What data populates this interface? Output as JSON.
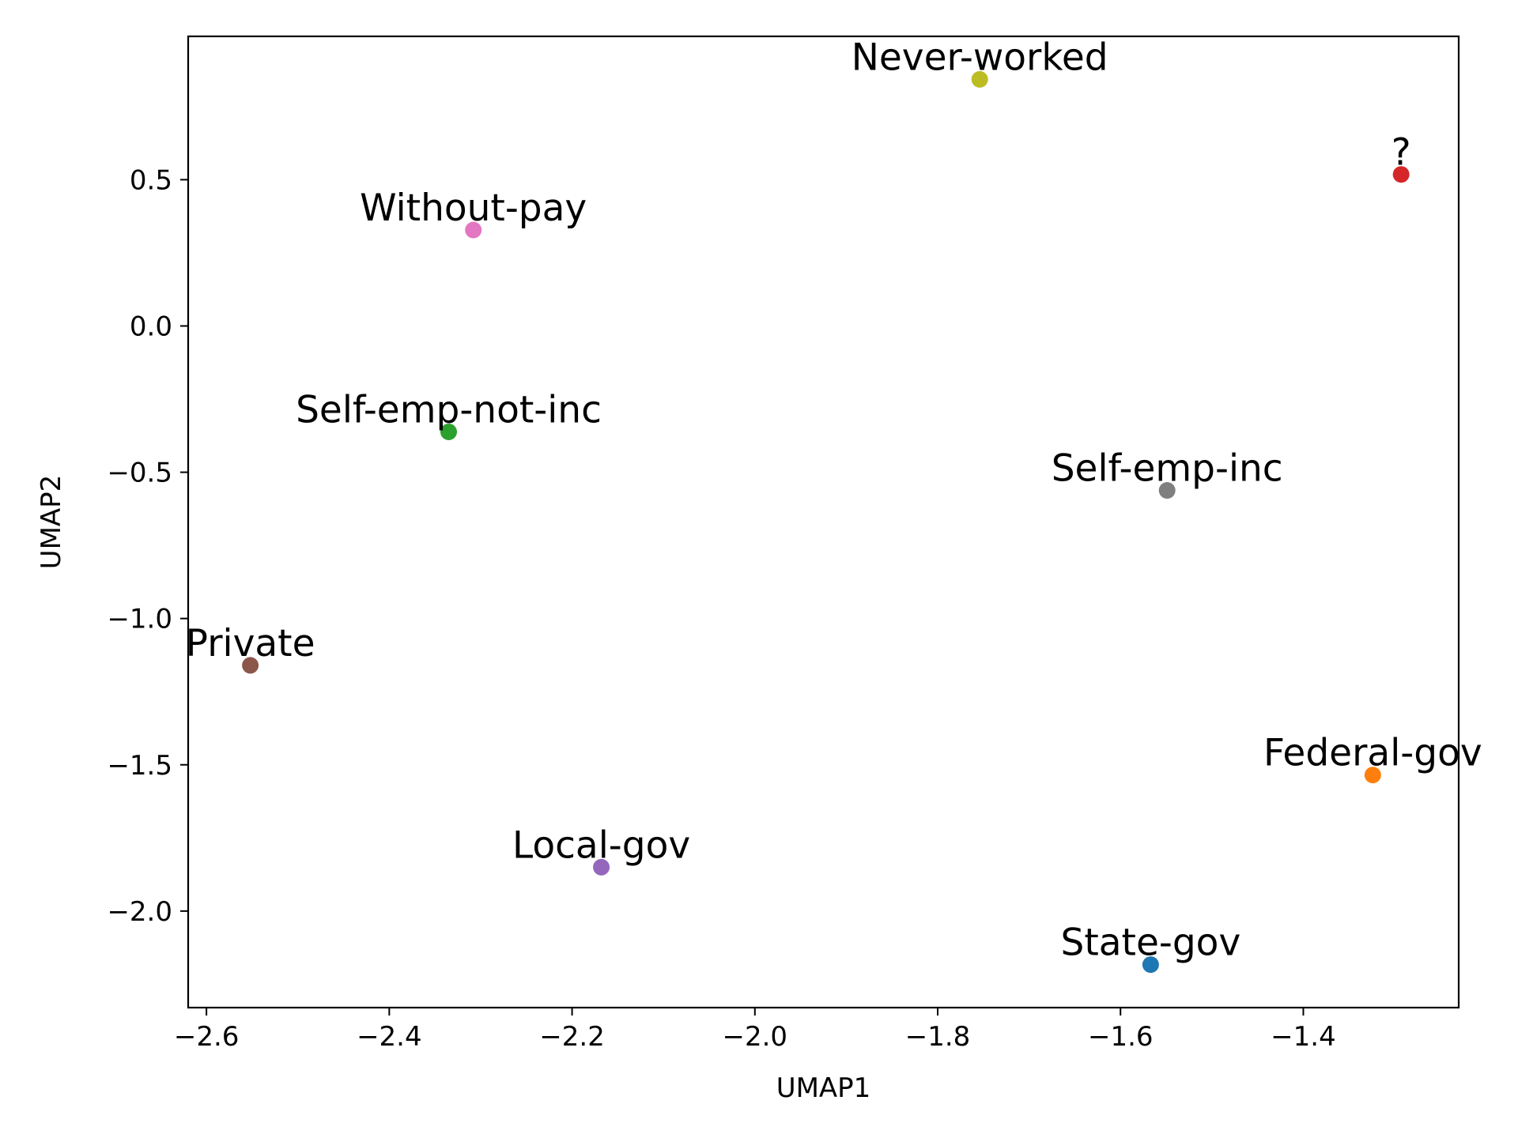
{
  "chart_data": {
    "type": "scatter",
    "title": "",
    "xlabel": "UMAP1",
    "ylabel": "UMAP2",
    "xlim": [
      -2.62,
      -1.23
    ],
    "ylim": [
      -2.33,
      0.99
    ],
    "xticks": [
      -2.6,
      -2.4,
      -2.2,
      -2.0,
      -1.8,
      -1.6,
      -1.4
    ],
    "xtick_labels": [
      "−2.6",
      "−2.4",
      "−2.2",
      "−2.0",
      "−1.8",
      "−1.6",
      "−1.4"
    ],
    "yticks": [
      0.5,
      0.0,
      -0.5,
      -1.0,
      -1.5,
      -2.0
    ],
    "ytick_labels": [
      "0.5",
      "0.0",
      "−0.5",
      "−1.0",
      "−1.5",
      "−2.0"
    ],
    "grid": false,
    "points": [
      {
        "label": "State-gov",
        "x": -1.567,
        "y": -2.183,
        "color": "#1f77b4"
      },
      {
        "label": "Federal-gov",
        "x": -1.324,
        "y": -1.535,
        "color": "#ff7f0e"
      },
      {
        "label": "Self-emp-not-inc",
        "x": -2.335,
        "y": -0.362,
        "color": "#2ca02c"
      },
      {
        "label": "?",
        "x": -1.293,
        "y": 0.518,
        "color": "#d62728"
      },
      {
        "label": "Local-gov",
        "x": -2.168,
        "y": -1.85,
        "color": "#9467bd"
      },
      {
        "label": "Private",
        "x": -2.552,
        "y": -1.16,
        "color": "#8c564b"
      },
      {
        "label": "Without-pay",
        "x": -2.308,
        "y": 0.328,
        "color": "#e377c2"
      },
      {
        "label": "Self-emp-inc",
        "x": -1.549,
        "y": -0.562,
        "color": "#7f7f7f"
      },
      {
        "label": "Never-worked",
        "x": -1.754,
        "y": 0.843,
        "color": "#bcbd22"
      }
    ]
  }
}
